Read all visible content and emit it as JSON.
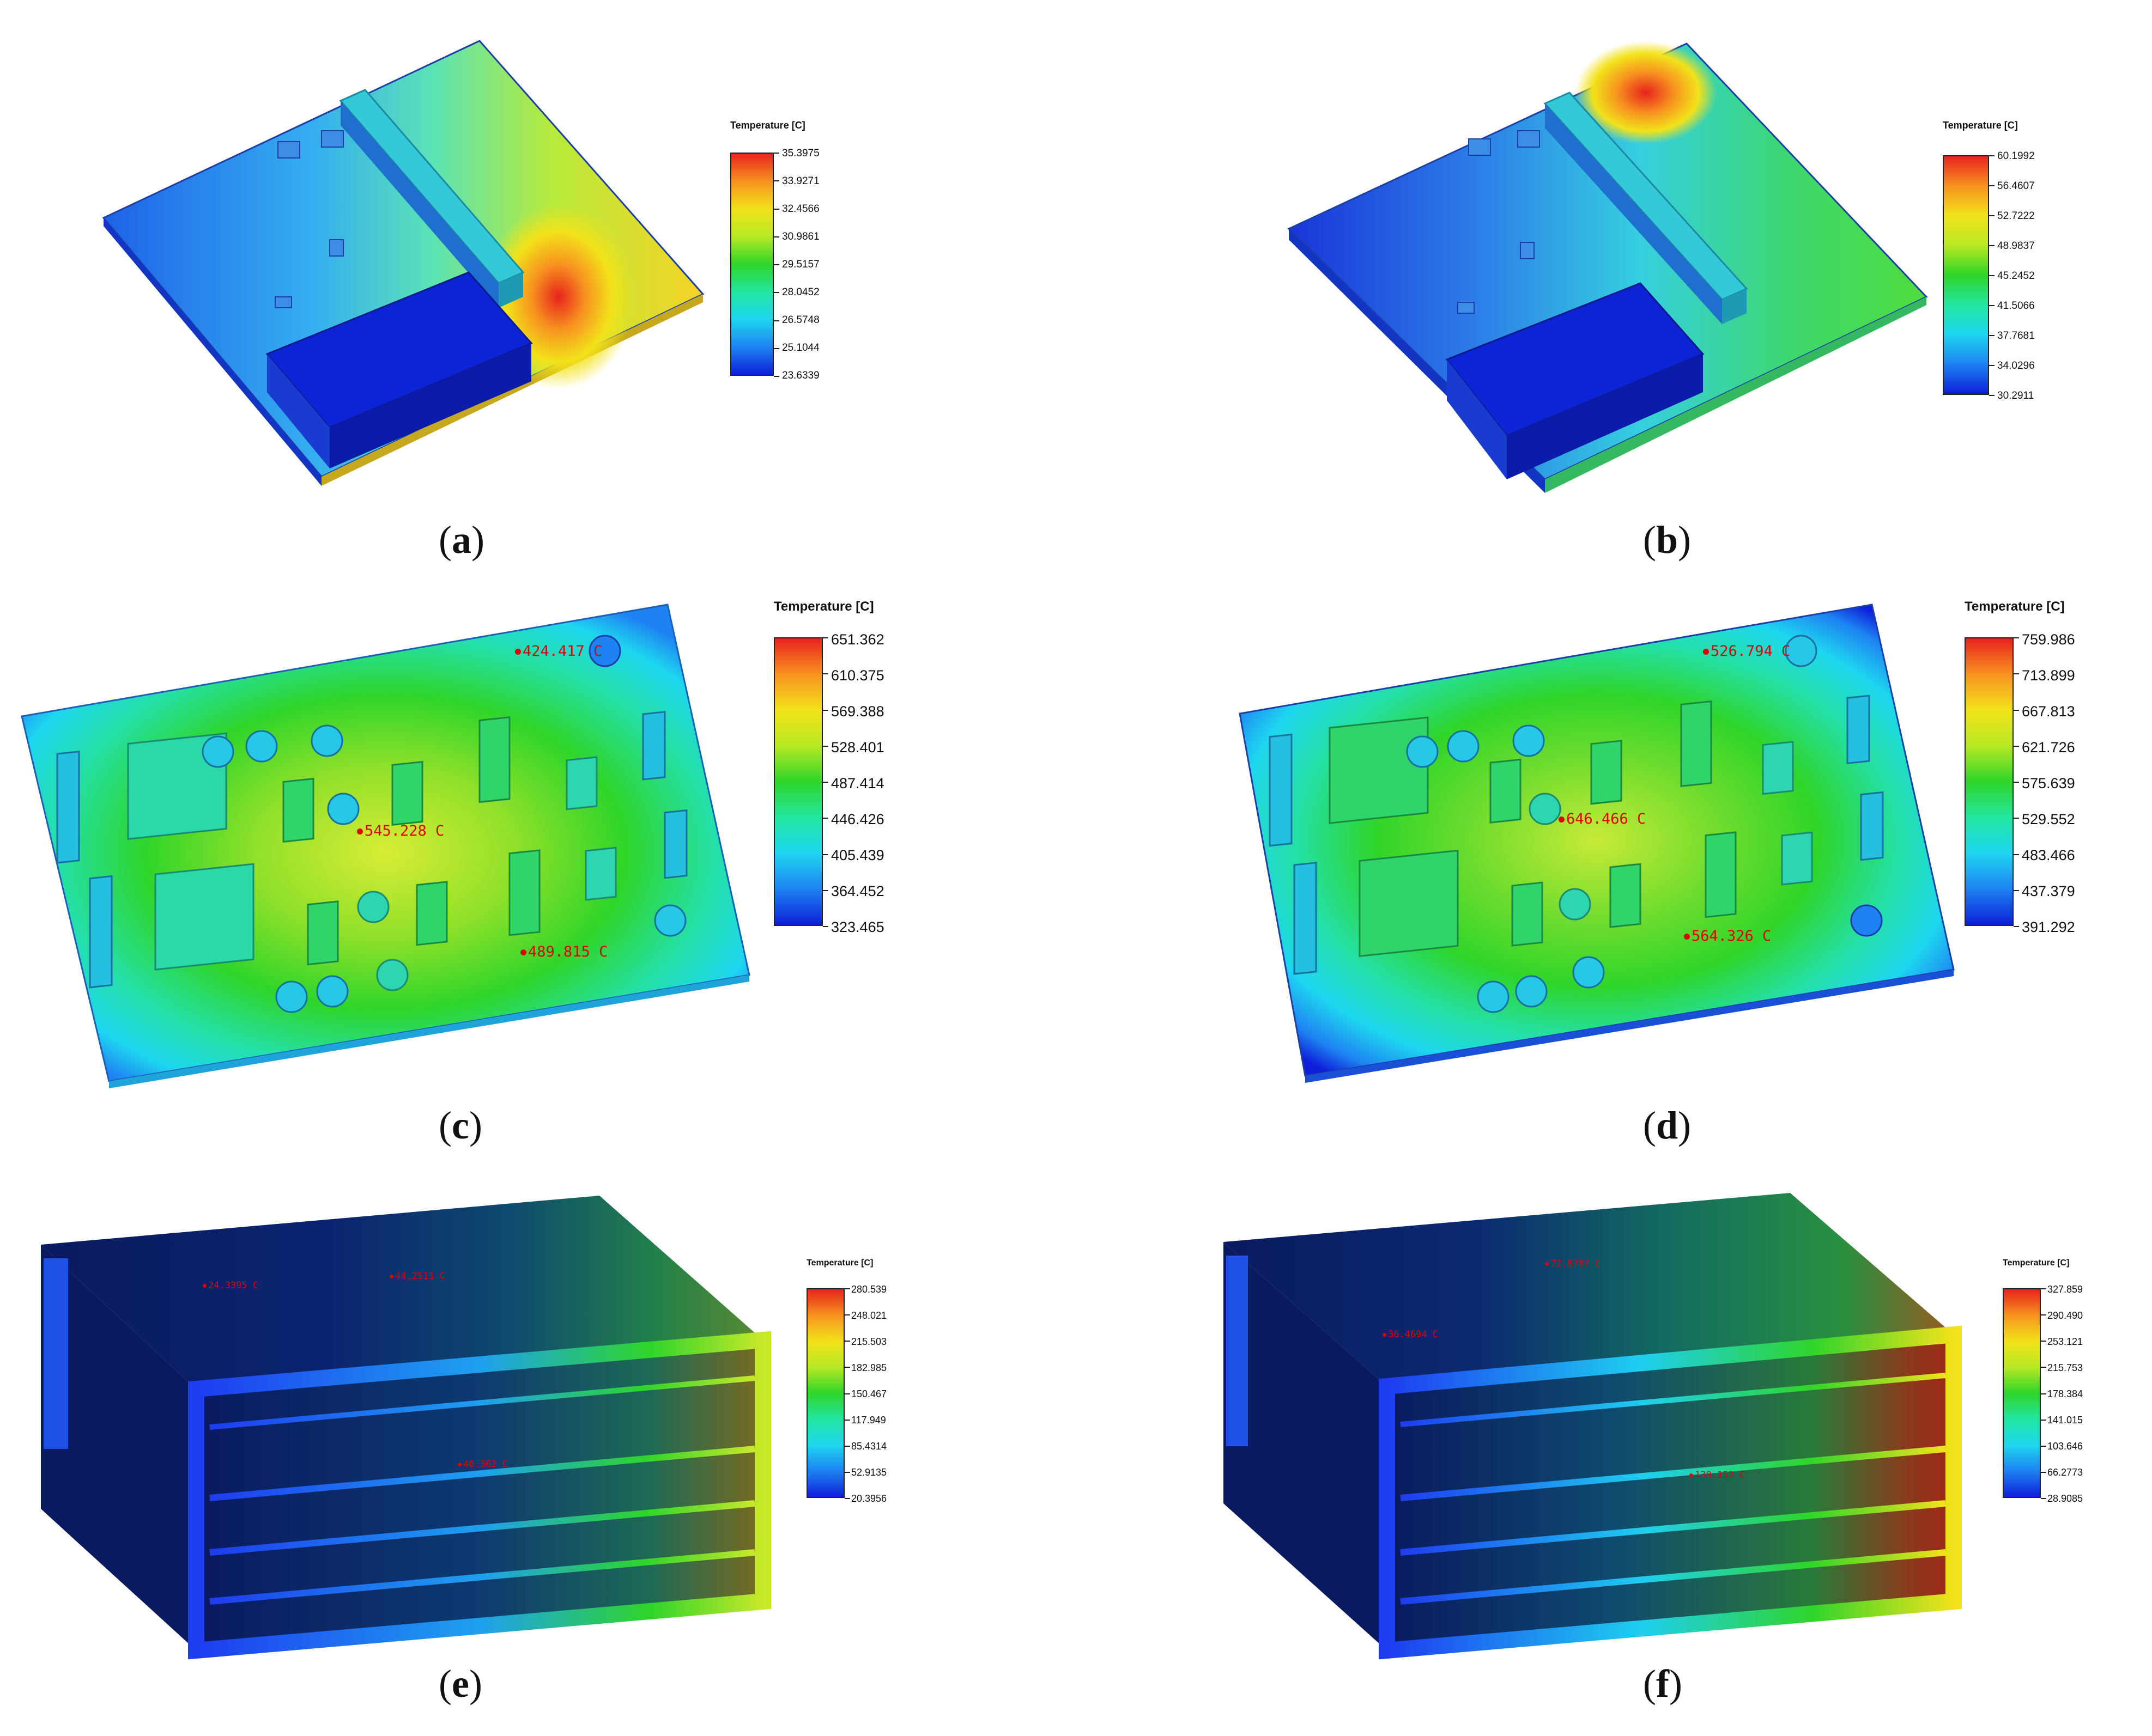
{
  "figure": {
    "panels": [
      {
        "id": "a",
        "caption": "a",
        "legend_title": "Temperature [C]",
        "legend_values": [
          "35.3975",
          "33.9271",
          "32.4566",
          "30.9861",
          "29.5157",
          "28.0452",
          "26.5748",
          "25.1044",
          "23.6339"
        ],
        "probes": []
      },
      {
        "id": "b",
        "caption": "b",
        "legend_title": "Temperature [C]",
        "legend_values": [
          "60.1992",
          "56.4607",
          "52.7222",
          "48.9837",
          "45.2452",
          "41.5066",
          "37.7681",
          "34.0296",
          "30.2911"
        ],
        "probes": []
      },
      {
        "id": "c",
        "caption": "c",
        "legend_title": "Temperature [C]",
        "legend_values": [
          "651.362",
          "610.375",
          "569.388",
          "528.401",
          "487.414",
          "446.426",
          "405.439",
          "364.452",
          "323.465"
        ],
        "probes": [
          "424.417 C",
          "545.228 C",
          "489.815 C"
        ]
      },
      {
        "id": "d",
        "caption": "d",
        "legend_title": "Temperature [C]",
        "legend_values": [
          "759.986",
          "713.899",
          "667.813",
          "621.726",
          "575.639",
          "529.552",
          "483.466",
          "437.379",
          "391.292"
        ],
        "probes": [
          "526.794 C",
          "646.466 C",
          "564.326 C"
        ]
      },
      {
        "id": "e",
        "caption": "e",
        "legend_title": "Temperature [C]",
        "legend_values": [
          "280.539",
          "248.021",
          "215.503",
          "182.985",
          "150.467",
          "117.949",
          "85.4314",
          "52.9135",
          "20.3956"
        ],
        "probes": [
          "24.3395 C",
          "44.2511 C",
          "40.362 C"
        ]
      },
      {
        "id": "f",
        "caption": "f",
        "legend_title": "Temperature [C]",
        "legend_values": [
          "327.859",
          "290.490",
          "253.121",
          "215.753",
          "178.384",
          "141.015",
          "103.646",
          "66.2773",
          "28.9085"
        ],
        "probes": [
          "72.8787 C",
          "36.4694 C",
          "138.152 C"
        ]
      }
    ],
    "colormap": [
      "#e8231e",
      "#f7921f",
      "#f2e21a",
      "#b7e923",
      "#2fd52a",
      "#21e6a0",
      "#1ed6ef",
      "#1e82f2",
      "#0d1fd9"
    ]
  }
}
